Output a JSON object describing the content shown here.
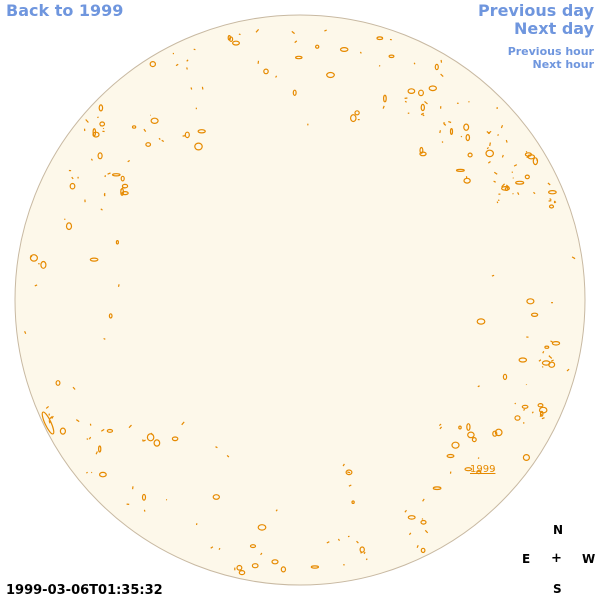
{
  "nav": {
    "back_label": "Back to 1999",
    "prev_day_label": "Previous day",
    "next_day_label": "Next day",
    "prev_hour_label": "Previous hour",
    "next_hour_label": "Next hour"
  },
  "compass": {
    "north": "N",
    "east": "E",
    "center": "+",
    "west": "W",
    "south": "S"
  },
  "timestamp": "1999-03-06T01:35:32",
  "marker": {
    "label": "1999"
  },
  "colors": {
    "disk_fill": "#fdf8ea",
    "disk_border": "#c8b9a2",
    "contour": "#e68a00",
    "link": "#6f96de"
  }
}
